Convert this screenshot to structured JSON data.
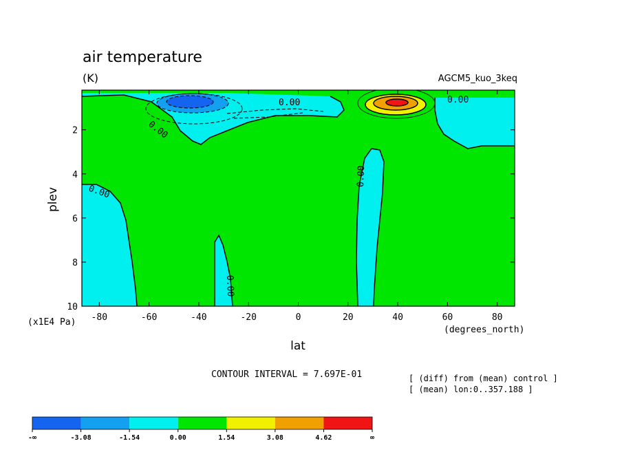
{
  "chart_data": {
    "type": "contour",
    "title": "air temperature",
    "units": "(K)",
    "experiment": "AGCM5_kuo_3keq",
    "xlabel": "lat",
    "x_units": "(degrees_north)",
    "ylabel": "plev",
    "y_units": "(x1E4 Pa)",
    "xlim": [
      -87,
      87
    ],
    "ylim": [
      10,
      0.2
    ],
    "x_ticks": [
      -80,
      -60,
      -40,
      -20,
      0,
      20,
      40,
      60,
      80
    ],
    "x_tick_labels": [
      "-80",
      "-60",
      "-40",
      "-20",
      "0",
      "20",
      "40",
      "60",
      "80"
    ],
    "y_ticks": [
      2,
      4,
      6,
      8,
      10
    ],
    "y_tick_labels": [
      "2",
      "4",
      "6",
      "8",
      "10"
    ],
    "contour_interval_text": "CONTOUR INTERVAL = 7.697E-01",
    "contour_labels": [
      "0.00",
      "0.00",
      "0.00",
      "0.00",
      "0.00",
      "0.00"
    ],
    "notes": [
      "[ (diff) from (mean) control ]",
      "[ (mean) lon:0..357.188 ]"
    ],
    "colorbar": {
      "levels": [
        "-∞",
        "-3.08",
        "-1.54",
        "0.00",
        "1.54",
        "3.08",
        "4.62",
        "∞"
      ],
      "colors": [
        "#1464f0",
        "#14a0f0",
        "#00f0f0",
        "#00e600",
        "#f0f000",
        "#f0a000",
        "#f01414"
      ]
    },
    "regions": [
      {
        "sign": "negative",
        "color": "#00f0f0",
        "description": "upper levels mid-southern latitudes"
      },
      {
        "sign": "negative",
        "color": "#14a0f0",
        "description": "upper level minimum near 45S"
      },
      {
        "sign": "negative",
        "color": "#1464f0",
        "description": "core minimum near 45S"
      },
      {
        "sign": "positive",
        "color": "#f0a000",
        "description": "upper level maximum near 40N"
      },
      {
        "sign": "positive",
        "color": "#f01414",
        "description": "core maximum near 40N"
      }
    ]
  }
}
